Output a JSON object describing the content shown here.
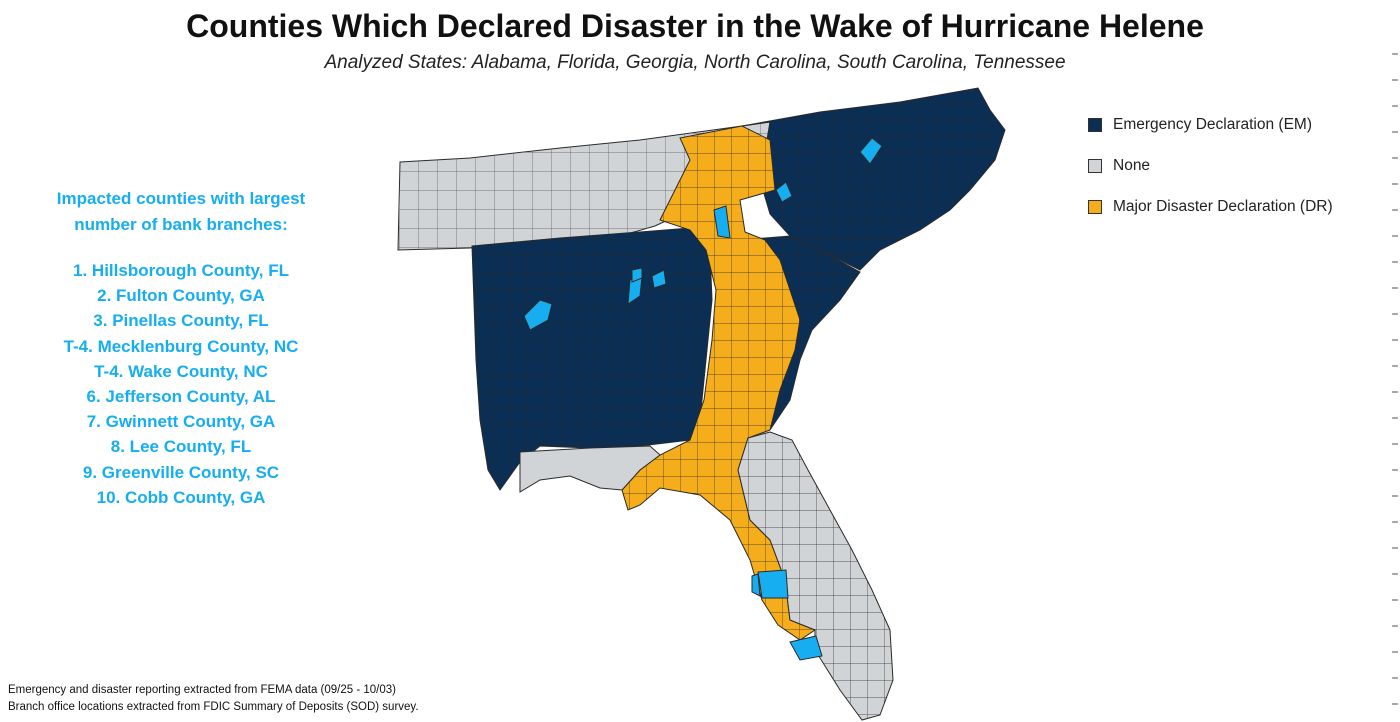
{
  "title": "Counties Which Declared Disaster in the Wake of Hurricane Helene",
  "subtitle": "Analyzed States: Alabama, Florida, Georgia, North Carolina, South Carolina, Tennessee",
  "impacted": {
    "heading_line1": "Impacted counties with largest",
    "heading_line2": "number of bank branches:",
    "items": [
      "1. Hillsborough County, FL",
      "2. Fulton County, GA",
      "3. Pinellas County, FL",
      "T-4. Mecklenburg County, NC",
      "T-4. Wake County, NC",
      "6. Jefferson County, AL",
      "7. Gwinnett County, GA",
      "8. Lee County, FL",
      "9. Greenville County, SC",
      "10. Cobb County, GA"
    ]
  },
  "legend": [
    {
      "label": "Emergency Declaration (EM)",
      "color": "#0b2e55"
    },
    {
      "label": "None",
      "color": "#d0d4d7"
    },
    {
      "label": "Major Disaster Declaration (DR)",
      "color": "#f5ad1b"
    }
  ],
  "colors": {
    "emergency": "#0b2e55",
    "none": "#d0d4d7",
    "major_disaster": "#f5ad1b",
    "impacted_highlight": "#16aef0",
    "county_border": "#2a2a2a"
  },
  "footer": {
    "line1": "Emergency and disaster reporting extracted from FEMA data (09/25 - 10/03)",
    "line2": "Branch office locations extracted from FDIC Summary of Deposits (SOD) survey."
  }
}
